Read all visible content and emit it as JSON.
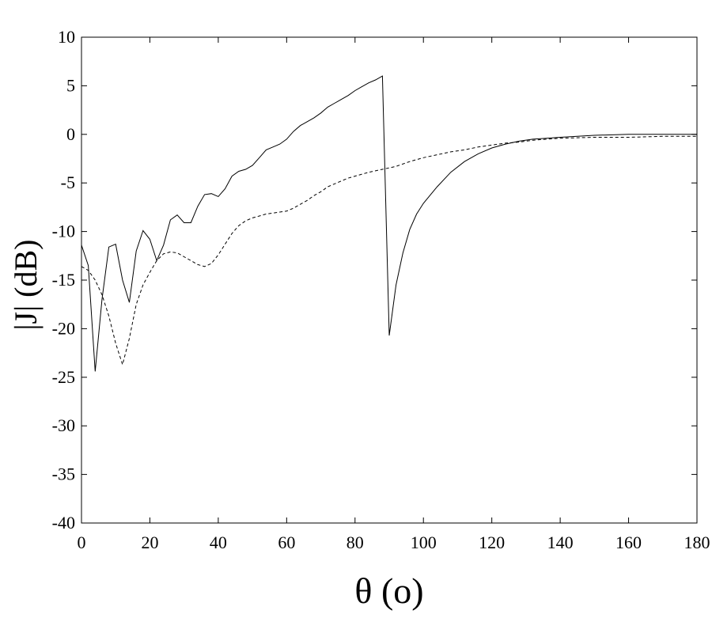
{
  "chart_data": {
    "type": "line",
    "title": "",
    "xlabel": "θ (ο)",
    "ylabel": "|J| (dB)",
    "xlim": [
      0,
      180
    ],
    "ylim": [
      -40,
      10
    ],
    "xticks": [
      0,
      20,
      40,
      60,
      80,
      100,
      120,
      140,
      160,
      180
    ],
    "yticks": [
      10,
      5,
      0,
      -5,
      -10,
      -15,
      -20,
      -25,
      -30,
      -35,
      -40
    ],
    "grid": false,
    "legend": "none",
    "series": [
      {
        "style": "solid",
        "color": "#000000",
        "x": [
          0,
          2,
          4,
          6,
          8,
          10,
          12,
          14,
          16,
          18,
          20,
          22,
          24,
          26,
          28,
          30,
          32,
          34,
          36,
          38,
          40,
          42,
          44,
          46,
          48,
          50,
          52,
          54,
          56,
          58,
          60,
          62,
          64,
          66,
          68,
          70,
          72,
          74,
          76,
          78,
          80,
          82,
          84,
          86,
          88,
          90,
          92,
          94,
          96,
          98,
          100,
          104,
          108,
          112,
          116,
          120,
          124,
          128,
          132,
          136,
          140,
          150,
          160,
          170,
          180
        ],
        "y": [
          -11.4,
          -13.5,
          -24.4,
          -17.0,
          -11.6,
          -11.3,
          -15.0,
          -17.3,
          -12.0,
          -9.9,
          -10.8,
          -13.0,
          -11.4,
          -8.8,
          -8.3,
          -9.1,
          -9.1,
          -7.4,
          -6.2,
          -6.1,
          -6.4,
          -5.6,
          -4.3,
          -3.8,
          -3.6,
          -3.2,
          -2.4,
          -1.6,
          -1.3,
          -1.0,
          -0.5,
          0.3,
          0.9,
          1.3,
          1.7,
          2.2,
          2.8,
          3.2,
          3.6,
          4.0,
          4.5,
          4.9,
          5.3,
          5.6,
          6.0,
          -20.7,
          -15.5,
          -12.2,
          -9.8,
          -8.2,
          -7.1,
          -5.4,
          -3.9,
          -2.8,
          -2.0,
          -1.4,
          -1.0,
          -0.7,
          -0.5,
          -0.4,
          -0.3,
          -0.1,
          0.0,
          0.0,
          0.0
        ]
      },
      {
        "style": "dashed",
        "color": "#000000",
        "x": [
          0,
          2,
          4,
          6,
          8,
          10,
          12,
          14,
          16,
          18,
          20,
          22,
          24,
          26,
          28,
          30,
          32,
          34,
          36,
          38,
          40,
          42,
          44,
          46,
          48,
          50,
          52,
          54,
          56,
          58,
          60,
          62,
          64,
          66,
          68,
          70,
          72,
          74,
          76,
          78,
          80,
          84,
          88,
          92,
          96,
          100,
          104,
          108,
          112,
          116,
          120,
          124,
          128,
          132,
          136,
          140,
          150,
          160,
          170,
          180
        ],
        "y": [
          -13.6,
          -14.0,
          -15.0,
          -16.5,
          -18.7,
          -21.5,
          -23.7,
          -21.0,
          -17.5,
          -15.5,
          -14.2,
          -13.0,
          -12.3,
          -12.1,
          -12.2,
          -12.6,
          -13.0,
          -13.4,
          -13.6,
          -13.3,
          -12.4,
          -11.3,
          -10.2,
          -9.4,
          -8.9,
          -8.6,
          -8.4,
          -8.2,
          -8.1,
          -8.0,
          -7.9,
          -7.6,
          -7.2,
          -6.8,
          -6.3,
          -5.9,
          -5.4,
          -5.1,
          -4.8,
          -4.5,
          -4.3,
          -3.9,
          -3.6,
          -3.3,
          -2.8,
          -2.4,
          -2.1,
          -1.8,
          -1.6,
          -1.3,
          -1.1,
          -0.9,
          -0.8,
          -0.6,
          -0.5,
          -0.4,
          -0.3,
          -0.3,
          -0.2,
          -0.2
        ]
      }
    ]
  }
}
